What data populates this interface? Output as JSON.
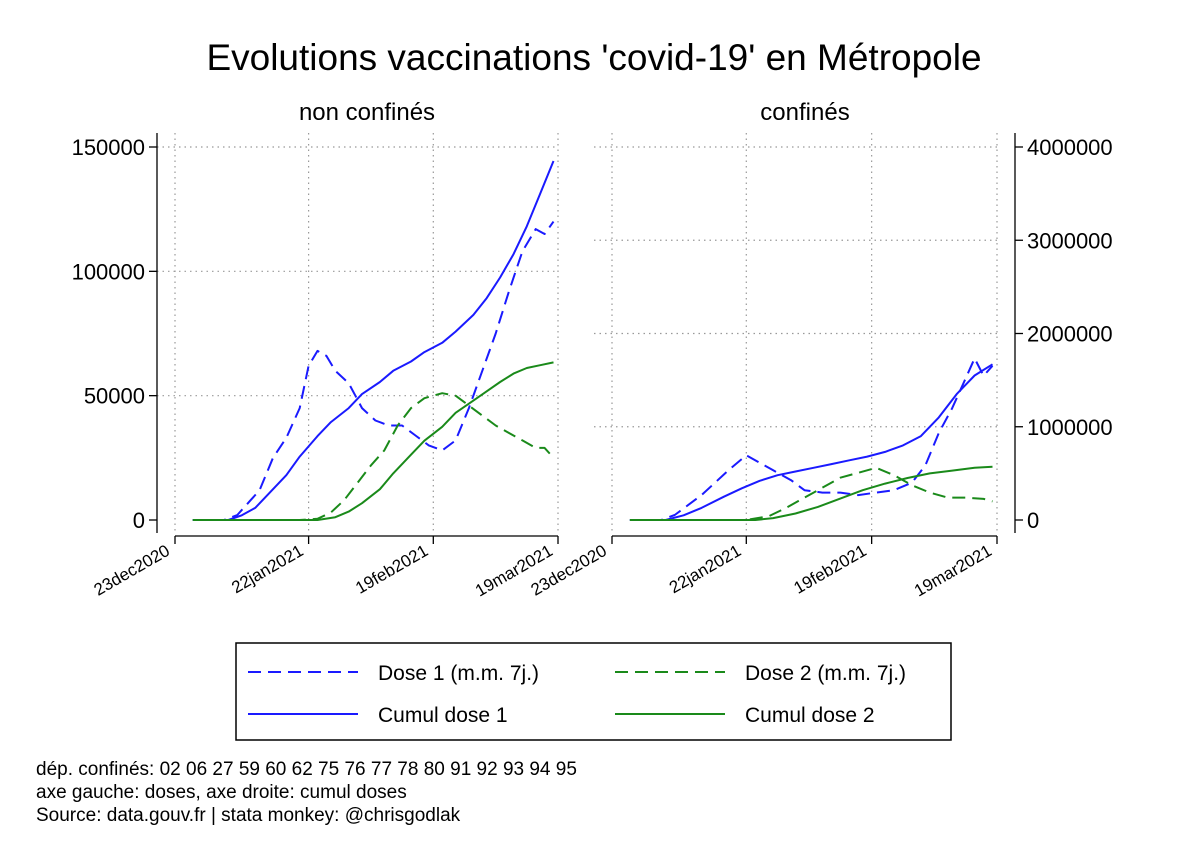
{
  "chart_data": {
    "type": "line",
    "title": "Evolutions vaccinations 'covid-19' en Métropole",
    "x_ticks": [
      "23dec2020",
      "22jan2021",
      "19feb2021",
      "19mar2021"
    ],
    "y_left_ticks": [
      "0",
      "50000",
      "100000",
      "150000"
    ],
    "y_right_ticks": [
      "0",
      "1000000",
      "2000000",
      "3000000",
      "4000000"
    ],
    "y_left_range": [
      0,
      150000
    ],
    "y_right_range": [
      0,
      4000000
    ],
    "grid": "dotted",
    "legend_position": "bottom",
    "legend": [
      {
        "label": "Dose 1 (m.m. 7j.)",
        "color": "#1a1aff",
        "style": "dashed"
      },
      {
        "label": "Dose 2 (m.m. 7j.)",
        "color": "#1a8a1a",
        "style": "dashed"
      },
      {
        "label": "Cumul dose 1",
        "color": "#1a1aff",
        "style": "solid"
      },
      {
        "label": "Cumul dose 2",
        "color": "#1a8a1a",
        "style": "solid"
      }
    ],
    "panels": [
      {
        "title": "non confinés",
        "series": [
          {
            "name": "Dose 1 (m.m. 7j.)",
            "axis": "left",
            "color": "#1a1aff",
            "style": "dashed",
            "points": [
              [
                "2020-12-27",
                0
              ],
              [
                "2021-01-03",
                0
              ],
              [
                "2021-01-06",
                2000
              ],
              [
                "2021-01-09",
                8000
              ],
              [
                "2021-01-11",
                12000
              ],
              [
                "2021-01-14",
                25000
              ],
              [
                "2021-01-17",
                33000
              ],
              [
                "2021-01-20",
                45000
              ],
              [
                "2021-01-22",
                62000
              ],
              [
                "2021-01-24",
                68000
              ],
              [
                "2021-01-26",
                66000
              ],
              [
                "2021-01-28",
                60000
              ],
              [
                "2021-01-31",
                55000
              ],
              [
                "2021-02-03",
                45000
              ],
              [
                "2021-02-06",
                40000
              ],
              [
                "2021-02-09",
                38000
              ],
              [
                "2021-02-12",
                38000
              ],
              [
                "2021-02-15",
                34000
              ],
              [
                "2021-02-18",
                30000
              ],
              [
                "2021-02-21",
                28000
              ],
              [
                "2021-02-24",
                32000
              ],
              [
                "2021-02-27",
                45000
              ],
              [
                "2021-03-02",
                60000
              ],
              [
                "2021-03-05",
                75000
              ],
              [
                "2021-03-08",
                92000
              ],
              [
                "2021-03-11",
                108000
              ],
              [
                "2021-03-14",
                117000
              ],
              [
                "2021-03-16",
                115000
              ],
              [
                "2021-03-18",
                120000
              ]
            ]
          },
          {
            "name": "Dose 2 (m.m. 7j.)",
            "axis": "left",
            "color": "#1a8a1a",
            "style": "dashed",
            "points": [
              [
                "2020-12-27",
                0
              ],
              [
                "2021-01-20",
                0
              ],
              [
                "2021-01-24",
                500
              ],
              [
                "2021-01-27",
                3000
              ],
              [
                "2021-01-30",
                8000
              ],
              [
                "2021-02-02",
                15000
              ],
              [
                "2021-02-05",
                22000
              ],
              [
                "2021-02-08",
                28000
              ],
              [
                "2021-02-11",
                38000
              ],
              [
                "2021-02-14",
                45000
              ],
              [
                "2021-02-17",
                49000
              ],
              [
                "2021-02-21",
                51000
              ],
              [
                "2021-02-24",
                50000
              ],
              [
                "2021-02-27",
                46000
              ],
              [
                "2021-03-02",
                42000
              ],
              [
                "2021-03-05",
                38000
              ],
              [
                "2021-03-08",
                35000
              ],
              [
                "2021-03-11",
                32000
              ],
              [
                "2021-03-14",
                29000
              ],
              [
                "2021-03-16",
                29000
              ],
              [
                "2021-03-18",
                25000
              ]
            ]
          },
          {
            "name": "Cumul dose 1",
            "axis": "right",
            "color": "#1a1aff",
            "style": "solid",
            "points": [
              [
                "2020-12-27",
                0
              ],
              [
                "2021-01-04",
                0
              ],
              [
                "2021-01-07",
                50000
              ],
              [
                "2021-01-10",
                130000
              ],
              [
                "2021-01-13",
                280000
              ],
              [
                "2021-01-17",
                480000
              ],
              [
                "2021-01-20",
                680000
              ],
              [
                "2021-01-24",
                900000
              ],
              [
                "2021-01-27",
                1050000
              ],
              [
                "2021-01-31",
                1200000
              ],
              [
                "2021-02-03",
                1350000
              ],
              [
                "2021-02-07",
                1480000
              ],
              [
                "2021-02-10",
                1600000
              ],
              [
                "2021-02-14",
                1700000
              ],
              [
                "2021-02-17",
                1800000
              ],
              [
                "2021-02-21",
                1900000
              ],
              [
                "2021-02-24",
                2020000
              ],
              [
                "2021-02-28",
                2200000
              ],
              [
                "2021-03-03",
                2380000
              ],
              [
                "2021-03-06",
                2600000
              ],
              [
                "2021-03-09",
                2850000
              ],
              [
                "2021-03-12",
                3150000
              ],
              [
                "2021-03-15",
                3500000
              ],
              [
                "2021-03-18",
                3850000
              ]
            ]
          },
          {
            "name": "Cumul dose 2",
            "axis": "right",
            "color": "#1a8a1a",
            "style": "solid",
            "points": [
              [
                "2020-12-27",
                0
              ],
              [
                "2021-01-24",
                0
              ],
              [
                "2021-01-28",
                30000
              ],
              [
                "2021-01-31",
                90000
              ],
              [
                "2021-02-03",
                180000
              ],
              [
                "2021-02-07",
                330000
              ],
              [
                "2021-02-10",
                500000
              ],
              [
                "2021-02-14",
                700000
              ],
              [
                "2021-02-17",
                850000
              ],
              [
                "2021-02-21",
                1000000
              ],
              [
                "2021-02-24",
                1150000
              ],
              [
                "2021-02-28",
                1280000
              ],
              [
                "2021-03-03",
                1380000
              ],
              [
                "2021-03-06",
                1480000
              ],
              [
                "2021-03-09",
                1570000
              ],
              [
                "2021-03-12",
                1630000
              ],
              [
                "2021-03-15",
                1660000
              ],
              [
                "2021-03-18",
                1690000
              ]
            ]
          }
        ]
      },
      {
        "title": "confinés",
        "series": [
          {
            "name": "Dose 1 (m.m. 7j.)",
            "axis": "left",
            "color": "#1a1aff",
            "style": "dashed",
            "points": [
              [
                "2020-12-27",
                0
              ],
              [
                "2021-01-03",
                0
              ],
              [
                "2021-01-06",
                2000
              ],
              [
                "2021-01-09",
                6000
              ],
              [
                "2021-01-12",
                10000
              ],
              [
                "2021-01-15",
                15000
              ],
              [
                "2021-01-18",
                20000
              ],
              [
                "2021-01-22",
                26000
              ],
              [
                "2021-01-25",
                23000
              ],
              [
                "2021-01-28",
                20000
              ],
              [
                "2021-02-01",
                16000
              ],
              [
                "2021-02-04",
                12000
              ],
              [
                "2021-02-08",
                11000
              ],
              [
                "2021-02-12",
                11000
              ],
              [
                "2021-02-16",
                10000
              ],
              [
                "2021-02-20",
                11000
              ],
              [
                "2021-02-24",
                12000
              ],
              [
                "2021-02-28",
                15000
              ],
              [
                "2021-03-03",
                22000
              ],
              [
                "2021-03-06",
                35000
              ],
              [
                "2021-03-09",
                45000
              ],
              [
                "2021-03-12",
                57000
              ],
              [
                "2021-03-14",
                65000
              ],
              [
                "2021-03-16",
                58000
              ],
              [
                "2021-03-18",
                62000
              ]
            ]
          },
          {
            "name": "Dose 2 (m.m. 7j.)",
            "axis": "left",
            "color": "#1a8a1a",
            "style": "dashed",
            "points": [
              [
                "2020-12-27",
                0
              ],
              [
                "2021-01-22",
                0
              ],
              [
                "2021-01-27",
                1500
              ],
              [
                "2021-01-31",
                5000
              ],
              [
                "2021-02-04",
                9000
              ],
              [
                "2021-02-08",
                13000
              ],
              [
                "2021-02-12",
                17000
              ],
              [
                "2021-02-16",
                19000
              ],
              [
                "2021-02-20",
                21000
              ],
              [
                "2021-02-24",
                18000
              ],
              [
                "2021-02-28",
                14000
              ],
              [
                "2021-03-04",
                11000
              ],
              [
                "2021-03-08",
                9000
              ],
              [
                "2021-03-12",
                9000
              ],
              [
                "2021-03-16",
                8500
              ],
              [
                "2021-03-18",
                7500
              ]
            ]
          },
          {
            "name": "Cumul dose 1",
            "axis": "right",
            "color": "#1a1aff",
            "style": "solid",
            "points": [
              [
                "2020-12-27",
                0
              ],
              [
                "2021-01-04",
                0
              ],
              [
                "2021-01-08",
                50000
              ],
              [
                "2021-01-12",
                130000
              ],
              [
                "2021-01-17",
                250000
              ],
              [
                "2021-01-21",
                340000
              ],
              [
                "2021-01-25",
                420000
              ],
              [
                "2021-01-29",
                480000
              ],
              [
                "2021-02-02",
                520000
              ],
              [
                "2021-02-06",
                560000
              ],
              [
                "2021-02-10",
                600000
              ],
              [
                "2021-02-14",
                640000
              ],
              [
                "2021-02-18",
                680000
              ],
              [
                "2021-02-22",
                730000
              ],
              [
                "2021-02-26",
                800000
              ],
              [
                "2021-03-02",
                900000
              ],
              [
                "2021-03-06",
                1100000
              ],
              [
                "2021-03-10",
                1350000
              ],
              [
                "2021-03-14",
                1550000
              ],
              [
                "2021-03-18",
                1670000
              ]
            ]
          },
          {
            "name": "Cumul dose 2",
            "axis": "right",
            "color": "#1a8a1a",
            "style": "solid",
            "points": [
              [
                "2020-12-27",
                0
              ],
              [
                "2021-01-24",
                0
              ],
              [
                "2021-01-28",
                20000
              ],
              [
                "2021-02-02",
                70000
              ],
              [
                "2021-02-07",
                140000
              ],
              [
                "2021-02-12",
                230000
              ],
              [
                "2021-02-17",
                320000
              ],
              [
                "2021-02-22",
                390000
              ],
              [
                "2021-02-27",
                450000
              ],
              [
                "2021-03-04",
                500000
              ],
              [
                "2021-03-09",
                530000
              ],
              [
                "2021-03-14",
                560000
              ],
              [
                "2021-03-18",
                570000
              ]
            ]
          }
        ]
      }
    ]
  },
  "notes": [
    "dép. confinés: 02 06 27 59 60 62 75 76 77 78 80 91 92 93 94 95",
    "axe gauche: doses, axe droite: cumul doses",
    "Source: data.gouv.fr | stata monkey: @chrisgodlak"
  ]
}
